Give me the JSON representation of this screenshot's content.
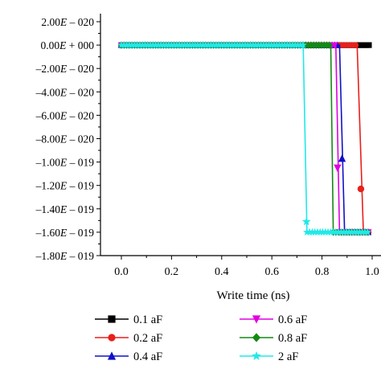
{
  "chart_data": {
    "type": "line",
    "title": "",
    "xlabel": "Write time (ns)",
    "ylabel": "",
    "xlim": [
      -0.05,
      1.0
    ],
    "ylim": [
      -1.8e-19,
      2e-20
    ],
    "xticks": [
      0.0,
      0.2,
      0.4,
      0.6,
      0.8,
      1.0
    ],
    "xtick_labels": [
      "0.0",
      "0.2",
      "0.4",
      "0.6",
      "0.8",
      "1.0"
    ],
    "yticks": [
      2e-20,
      0,
      -2e-20,
      -4e-20,
      -6e-20,
      -8e-20,
      -1e-19,
      -1.2e-19,
      -1.4e-19,
      -1.6e-19,
      -1.8e-19
    ],
    "ytick_labels": [
      {
        "sign": "",
        "mant": "2.00",
        "exp": "– 020"
      },
      {
        "sign": "",
        "mant": "0.00",
        "exp": "+ 000"
      },
      {
        "sign": "–",
        "mant": "2.00",
        "exp": "– 020"
      },
      {
        "sign": "–",
        "mant": "4.00",
        "exp": "– 020"
      },
      {
        "sign": "–",
        "mant": "6.00",
        "exp": "– 020"
      },
      {
        "sign": "–",
        "mant": "8.00",
        "exp": "– 020"
      },
      {
        "sign": "–",
        "mant": "1.00",
        "exp": "– 019"
      },
      {
        "sign": "–",
        "mant": "1.20",
        "exp": "– 019"
      },
      {
        "sign": "–",
        "mant": "1.40",
        "exp": "– 019"
      },
      {
        "sign": "–",
        "mant": "1.60",
        "exp": "– 019"
      },
      {
        "sign": "–",
        "mant": "1.80",
        "exp": "– 019"
      }
    ],
    "grid": false,
    "legend_position": "bottom",
    "series": [
      {
        "name": "0.1 aF",
        "color": "#000000",
        "marker": "square",
        "x": [
          0.0,
          0.99
        ],
        "y": [
          0,
          0
        ],
        "switch_at": null
      },
      {
        "name": "0.2 aF",
        "color": "#e8201b",
        "marker": "circle",
        "x": [
          0.0,
          0.94,
          0.965,
          0.99
        ],
        "y": [
          0,
          0,
          -1.6e-19,
          -1.6e-19
        ],
        "switch_at": 0.955,
        "mid_marker": [
          0.955,
          -1.23e-19
        ]
      },
      {
        "name": "0.4 aF",
        "color": "#1010c8",
        "marker": "triangle-up",
        "x": [
          0.0,
          0.87,
          0.89,
          0.99
        ],
        "y": [
          0,
          0,
          -1.6e-19,
          -1.6e-19
        ],
        "switch_at": 0.88,
        "mid_marker": [
          0.88,
          -9.7e-20
        ]
      },
      {
        "name": "0.6 aF",
        "color": "#e000e0",
        "marker": "triangle-down",
        "x": [
          0.0,
          0.855,
          0.87,
          0.99
        ],
        "y": [
          0,
          0,
          -1.6e-19,
          -1.6e-19
        ],
        "switch_at": 0.862,
        "mid_marker": [
          0.862,
          -1.05e-19
        ]
      },
      {
        "name": "0.8 aF",
        "color": "#138a13",
        "marker": "diamond",
        "x": [
          0.0,
          0.835,
          0.845,
          0.99
        ],
        "y": [
          0,
          0,
          -1.6e-19,
          -1.6e-19
        ],
        "switch_at": 0.84,
        "mid_marker": null
      },
      {
        "name": "2 aF",
        "color": "#22e8e8",
        "marker": "star",
        "x": [
          0.0,
          0.725,
          0.74,
          0.99
        ],
        "y": [
          0,
          0,
          -1.6e-19,
          -1.6e-19
        ],
        "switch_at": 0.733,
        "mid_marker": [
          0.738,
          -1.51e-19
        ]
      }
    ]
  }
}
